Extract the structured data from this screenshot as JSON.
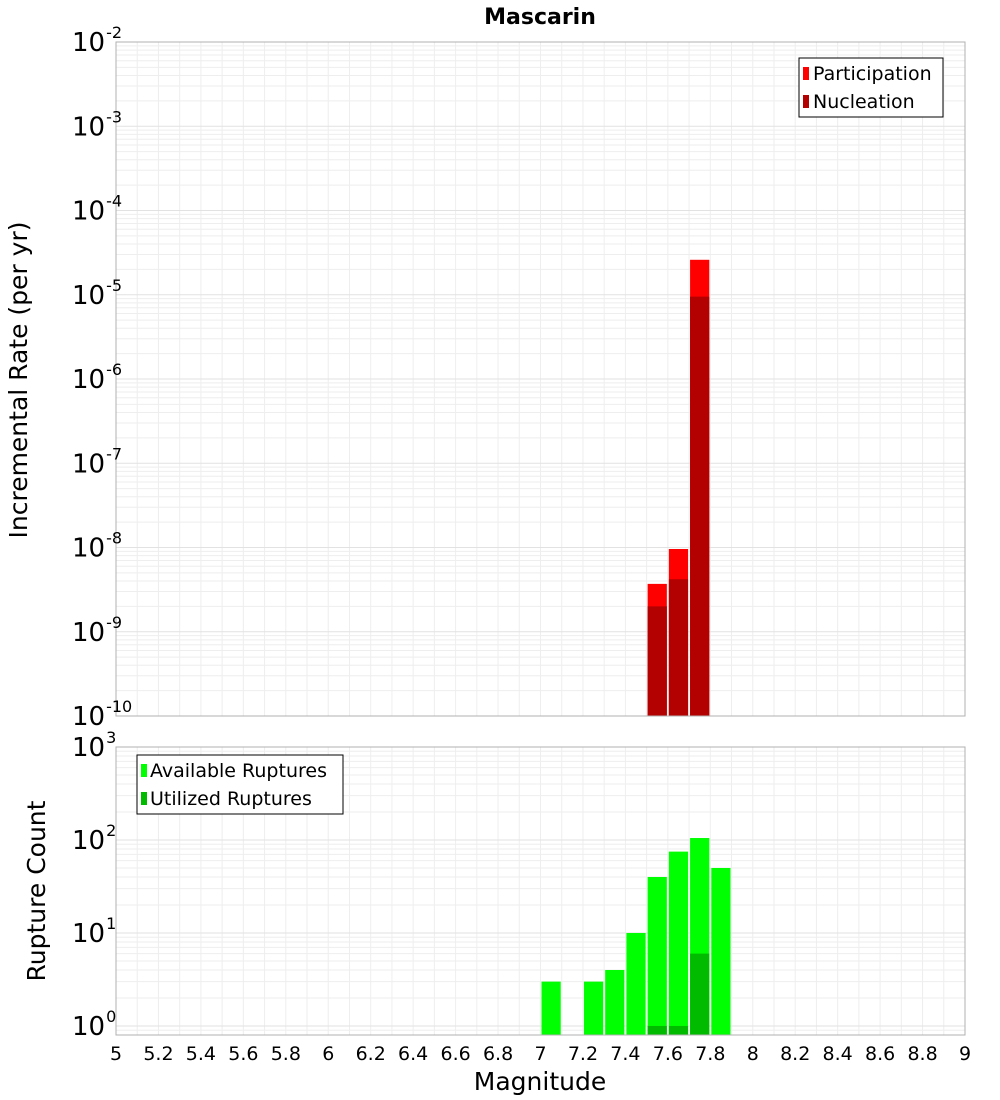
{
  "chart_data": [
    {
      "type": "bar",
      "title": "Mascarin",
      "xlabel": "",
      "ylabel": "Incremental Rate (per yr)",
      "yscale": "log",
      "xlim": [
        5,
        9
      ],
      "ylim": [
        1e-10,
        0.01
      ],
      "y_ticks": [
        {
          "base": "10",
          "exp": "-10"
        },
        {
          "base": "10",
          "exp": "-9"
        },
        {
          "base": "10",
          "exp": "-8"
        },
        {
          "base": "10",
          "exp": "-7"
        },
        {
          "base": "10",
          "exp": "-6"
        },
        {
          "base": "10",
          "exp": "-5"
        },
        {
          "base": "10",
          "exp": "-4"
        },
        {
          "base": "10",
          "exp": "-3"
        },
        {
          "base": "10",
          "exp": "-2"
        }
      ],
      "grid": true,
      "legend_position": "top-right",
      "bin_width": 0.1,
      "overlay": true,
      "series": [
        {
          "name": "Participation",
          "color": "#ff0000",
          "x": [
            7.55,
            7.65,
            7.75
          ],
          "values": [
            3.7e-09,
            9.6e-09,
            2.6e-05
          ]
        },
        {
          "name": "Nucleation",
          "color": "#b30000",
          "x": [
            7.55,
            7.65,
            7.75
          ],
          "values": [
            2e-09,
            4.2e-09,
            9.5e-06
          ]
        }
      ]
    },
    {
      "type": "bar",
      "title": "",
      "xlabel": "Magnitude",
      "ylabel": "Rupture Count",
      "yscale": "log",
      "xlim": [
        5,
        9
      ],
      "ylim": [
        0.8,
        1000
      ],
      "y_ticks": [
        {
          "base": "10",
          "exp": "0"
        },
        {
          "base": "10",
          "exp": "1"
        },
        {
          "base": "10",
          "exp": "2"
        },
        {
          "base": "10",
          "exp": "3"
        }
      ],
      "x_ticks": [
        "5",
        "5.2",
        "5.4",
        "5.6",
        "5.8",
        "6",
        "6.2",
        "6.4",
        "6.6",
        "6.8",
        "7",
        "7.2",
        "7.4",
        "7.6",
        "7.8",
        "8",
        "8.2",
        "8.4",
        "8.6",
        "8.8",
        "9"
      ],
      "grid": true,
      "legend_position": "top-left",
      "bin_width": 0.1,
      "overlay": true,
      "series": [
        {
          "name": "Available Ruptures",
          "color": "#00ff00",
          "x": [
            7.05,
            7.25,
            7.35,
            7.45,
            7.55,
            7.65,
            7.75,
            7.85
          ],
          "values": [
            3,
            3,
            4,
            10,
            40,
            75,
            105,
            50
          ]
        },
        {
          "name": "Utilized Ruptures",
          "color": "#00bb00",
          "x": [
            7.55,
            7.65,
            7.75
          ],
          "values": [
            1,
            1,
            6
          ]
        }
      ]
    }
  ]
}
